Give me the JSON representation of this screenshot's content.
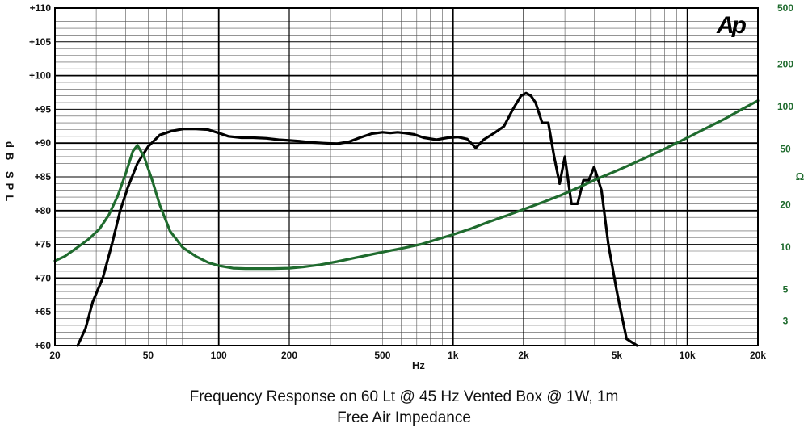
{
  "chart_data": {
    "type": "line",
    "title": "Frequency Response on 60 Lt @ 45 Hz Vented Box @ 1W, 1m",
    "subtitle": "Free Air Impedance",
    "xlabel": "Hz",
    "x_scale": "log",
    "xlim": [
      20,
      20000
    ],
    "x_ticks": [
      20,
      50,
      100,
      200,
      500,
      1000,
      2000,
      5000,
      10000,
      20000
    ],
    "x_tick_labels": [
      "20",
      "50",
      "100",
      "200",
      "500",
      "1k",
      "2k",
      "5k",
      "10k",
      "20k"
    ],
    "ylabel_left": [
      "dB",
      "SPL"
    ],
    "ylim_left": [
      60,
      110
    ],
    "y_ticks_left": [
      60,
      65,
      70,
      75,
      80,
      85,
      90,
      95,
      100,
      105,
      110
    ],
    "y_tick_labels_left": [
      "+60",
      "+65",
      "+70",
      "+75",
      "+80",
      "+85",
      "+90",
      "+95",
      "+100",
      "+105",
      "+110"
    ],
    "ylabel_right": "Ω",
    "y_scale_right": "log",
    "ylim_right": [
      2,
      500
    ],
    "y_ticks_right": [
      3,
      5,
      10,
      20,
      50,
      100,
      200,
      500
    ],
    "y_tick_labels_right": [
      "3",
      "5",
      "10",
      "20",
      "50",
      "100",
      "200",
      "500"
    ],
    "grid": true,
    "logo_text": "Ap",
    "series": [
      {
        "name": "",
        "axis": "left",
        "color": "#000000",
        "x": [
          25,
          27,
          29,
          32,
          35,
          38,
          41,
          45,
          50,
          56,
          63,
          71,
          80,
          90,
          100,
          110,
          125,
          140,
          160,
          180,
          200,
          220,
          250,
          280,
          320,
          360,
          400,
          450,
          500,
          540,
          580,
          620,
          680,
          750,
          850,
          950,
          1050,
          1150,
          1250,
          1350,
          1500,
          1650,
          1800,
          1950,
          2050,
          2150,
          2250,
          2400,
          2550,
          2700,
          2850,
          3000,
          3200,
          3400,
          3600,
          3800,
          4000,
          4300,
          4600,
          5000,
          5500,
          6100
        ],
        "values": [
          60,
          62.5,
          66.5,
          70,
          75,
          80,
          83.5,
          87,
          89.5,
          91.2,
          91.8,
          92.1,
          92.1,
          92,
          91.5,
          91,
          90.8,
          90.8,
          90.7,
          90.5,
          90.4,
          90.3,
          90.1,
          90,
          89.9,
          90.2,
          90.8,
          91.4,
          91.6,
          91.5,
          91.6,
          91.5,
          91.3,
          90.8,
          90.5,
          90.8,
          90.9,
          90.6,
          89.3,
          90.5,
          91.5,
          92.5,
          95,
          97,
          97.4,
          97,
          96,
          93,
          93,
          88,
          84,
          88,
          81,
          81,
          84.5,
          84.5,
          86.5,
          83,
          75,
          68,
          61,
          60
        ]
      },
      {
        "name": "",
        "axis": "right",
        "color": "#1f6b2e",
        "x": [
          20,
          22,
          25,
          28,
          31,
          34,
          37,
          40,
          43,
          45,
          48,
          52,
          56,
          62,
          70,
          80,
          90,
          100,
          115,
          130,
          150,
          170,
          200,
          230,
          270,
          320,
          380,
          450,
          530,
          620,
          730,
          860,
          1000,
          1200,
          1400,
          1700,
          2000,
          2400,
          2900,
          3500,
          4200,
          5000,
          6000,
          7200,
          8600,
          10000,
          12000,
          14500,
          17000,
          20000
        ],
        "values": [
          8,
          8.6,
          10,
          11.5,
          13.5,
          17,
          23,
          33,
          48,
          53,
          44,
          30,
          20,
          13,
          10,
          8.6,
          7.8,
          7.4,
          7.1,
          7.05,
          7.05,
          7.05,
          7.1,
          7.25,
          7.5,
          7.9,
          8.4,
          8.9,
          9.4,
          9.9,
          10.5,
          11.4,
          12.3,
          13.6,
          15,
          16.8,
          18.6,
          20.8,
          23.5,
          27,
          31,
          35,
          40,
          46,
          53,
          60,
          70,
          82,
          95,
          110
        ]
      }
    ]
  }
}
